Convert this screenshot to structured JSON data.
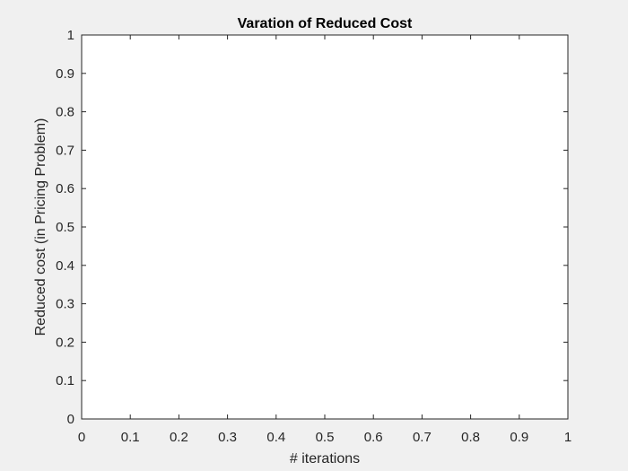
{
  "chart_data": {
    "type": "line",
    "title": "Varation of Reduced Cost",
    "xlabel": "# iterations",
    "ylabel": "Reduced cost (in Pricing Problem)",
    "xlim": [
      0,
      1
    ],
    "ylim": [
      0,
      1
    ],
    "x_ticks": [
      "0",
      "0.1",
      "0.2",
      "0.3",
      "0.4",
      "0.5",
      "0.6",
      "0.7",
      "0.8",
      "0.9",
      "1"
    ],
    "y_ticks": [
      "0",
      "0.1",
      "0.2",
      "0.3",
      "0.4",
      "0.5",
      "0.6",
      "0.7",
      "0.8",
      "0.9",
      "1"
    ],
    "grid": false,
    "series": []
  },
  "colors": {
    "figure_background": "#f0f0f0",
    "axes_background": "#ffffff",
    "axis_color": "#262626"
  }
}
